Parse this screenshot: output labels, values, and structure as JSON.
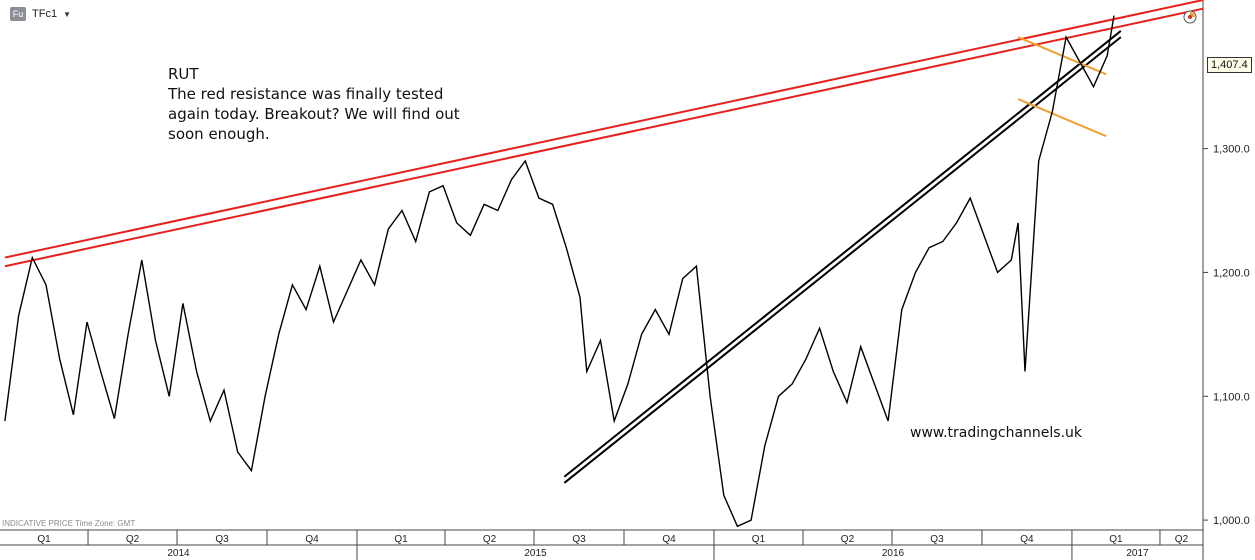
{
  "toolbar": {
    "badge": "Fu",
    "symbol": "TFc1",
    "dropdown_icon": "caret-down-icon",
    "clock_icon": "clock-icon"
  },
  "annotation": {
    "lines": [
      "RUT",
      "The red resistance was finally tested",
      "again today. Breakout? We will find out",
      "soon enough."
    ]
  },
  "watermark": "www.tradingchannels.uk",
  "footer_note": "INDICATIVE PRICE   Time Zone: GMT",
  "last_price": "1,407.4",
  "colors": {
    "price": "#000000",
    "resistance": "#e8201c",
    "support": "#000000",
    "flag": "#f0a030",
    "tag_bg": "#fffde8",
    "grid": "#d8d8d8"
  },
  "chart_data": {
    "type": "line",
    "symbol": "TFc1",
    "y_ticks": [
      1000,
      1100,
      1200,
      1300
    ],
    "y_tick_labels": [
      "1,000.0",
      "1,100.0",
      "1,200.0",
      "1,300.0"
    ],
    "ylim": [
      992,
      1420
    ],
    "xlim": [
      "2014-01-01",
      "2017-05-15"
    ],
    "grid": false,
    "x_quarters": [
      {
        "label": "Q1",
        "start": "2014-01-01",
        "end": "2014-04-01"
      },
      {
        "label": "Q2",
        "start": "2014-04-01",
        "end": "2014-07-01"
      },
      {
        "label": "Q3",
        "start": "2014-07-01",
        "end": "2014-10-01"
      },
      {
        "label": "Q4",
        "start": "2014-10-01",
        "end": "2015-01-01"
      },
      {
        "label": "Q1",
        "start": "2015-01-01",
        "end": "2015-04-01"
      },
      {
        "label": "Q2",
        "start": "2015-04-01",
        "end": "2015-07-01"
      },
      {
        "label": "Q3",
        "start": "2015-07-01",
        "end": "2015-10-01"
      },
      {
        "label": "Q4",
        "start": "2015-10-01",
        "end": "2016-01-01"
      },
      {
        "label": "Q1",
        "start": "2016-01-01",
        "end": "2016-04-01"
      },
      {
        "label": "Q2",
        "start": "2016-04-01",
        "end": "2016-07-01"
      },
      {
        "label": "Q3",
        "start": "2016-07-01",
        "end": "2016-10-01"
      },
      {
        "label": "Q4",
        "start": "2016-10-01",
        "end": "2017-01-01"
      },
      {
        "label": "Q1",
        "start": "2017-01-01",
        "end": "2017-04-01"
      },
      {
        "label": "Q2",
        "start": "2017-04-01",
        "end": "2017-05-15"
      }
    ],
    "x_years": [
      {
        "label": "2014",
        "start": "2014-01-01",
        "end": "2015-01-01"
      },
      {
        "label": "2015",
        "start": "2015-01-01",
        "end": "2016-01-01"
      },
      {
        "label": "2016",
        "start": "2016-01-01",
        "end": "2017-01-01"
      },
      {
        "label": "2017",
        "start": "2017-01-01",
        "end": "2017-05-15"
      }
    ],
    "series": [
      {
        "x": [
          "2014-01-06",
          "2014-01-20",
          "2014-02-03",
          "2014-02-17",
          "2014-03-03",
          "2014-03-17",
          "2014-03-31",
          "2014-04-14",
          "2014-04-28",
          "2014-05-12",
          "2014-05-26",
          "2014-06-09",
          "2014-06-23",
          "2014-07-07",
          "2014-07-21",
          "2014-08-04",
          "2014-08-18",
          "2014-09-01",
          "2014-09-15",
          "2014-09-29",
          "2014-10-13",
          "2014-10-27",
          "2014-11-10",
          "2014-11-24",
          "2014-12-08",
          "2014-12-22",
          "2015-01-05",
          "2015-01-19",
          "2015-02-02",
          "2015-02-16",
          "2015-03-02",
          "2015-03-16",
          "2015-03-30",
          "2015-04-13",
          "2015-04-27",
          "2015-05-11",
          "2015-05-25",
          "2015-06-08",
          "2015-06-22",
          "2015-07-06",
          "2015-07-20",
          "2015-08-03",
          "2015-08-17",
          "2015-08-24",
          "2015-09-07",
          "2015-09-21",
          "2015-10-05",
          "2015-10-19",
          "2015-11-02",
          "2015-11-16",
          "2015-11-30",
          "2015-12-14",
          "2015-12-28",
          "2016-01-11",
          "2016-01-25",
          "2016-02-08",
          "2016-02-22",
          "2016-03-07",
          "2016-03-21",
          "2016-04-04",
          "2016-04-18",
          "2016-05-02",
          "2016-05-16",
          "2016-05-30",
          "2016-06-13",
          "2016-06-27",
          "2016-07-11",
          "2016-07-25",
          "2016-08-08",
          "2016-08-22",
          "2016-09-05",
          "2016-09-19",
          "2016-10-03",
          "2016-10-17",
          "2016-10-31",
          "2016-11-07",
          "2016-11-14",
          "2016-11-28",
          "2016-12-12",
          "2016-12-26",
          "2017-01-09",
          "2017-01-23",
          "2017-02-06",
          "2017-02-13"
        ],
        "y": [
          1080,
          1165,
          1212,
          1190,
          1130,
          1085,
          1160,
          1120,
          1082,
          1150,
          1210,
          1145,
          1100,
          1175,
          1120,
          1080,
          1105,
          1055,
          1040,
          1100,
          1150,
          1190,
          1170,
          1205,
          1160,
          1185,
          1210,
          1190,
          1235,
          1250,
          1225,
          1265,
          1270,
          1240,
          1230,
          1255,
          1250,
          1275,
          1290,
          1260,
          1255,
          1220,
          1180,
          1120,
          1145,
          1080,
          1110,
          1150,
          1170,
          1150,
          1195,
          1205,
          1100,
          1020,
          995,
          1000,
          1060,
          1100,
          1110,
          1130,
          1155,
          1120,
          1095,
          1140,
          1110,
          1080,
          1170,
          1200,
          1220,
          1225,
          1240,
          1260,
          1230,
          1200,
          1210,
          1240,
          1120,
          1290,
          1330,
          1390,
          1370,
          1350,
          1375,
          1407.4
        ]
      }
    ],
    "resistance_lines": [
      {
        "x": [
          "2014-01-06",
          "2017-05-15"
        ],
        "y": [
          1212,
          1420
        ]
      },
      {
        "x": [
          "2014-01-06",
          "2017-05-15"
        ],
        "y": [
          1205,
          1413
        ]
      }
    ],
    "support_lines": [
      {
        "x": [
          "2015-08-01",
          "2017-02-20"
        ],
        "y": [
          1030,
          1390
        ]
      },
      {
        "x": [
          "2015-08-01",
          "2017-02-20"
        ],
        "y": [
          1035,
          1395
        ]
      }
    ],
    "flag_lines": [
      {
        "x": [
          "2016-11-07",
          "2017-02-05"
        ],
        "y": [
          1390,
          1360
        ]
      },
      {
        "x": [
          "2016-11-07",
          "2017-02-05"
        ],
        "y": [
          1340,
          1310
        ]
      }
    ]
  }
}
